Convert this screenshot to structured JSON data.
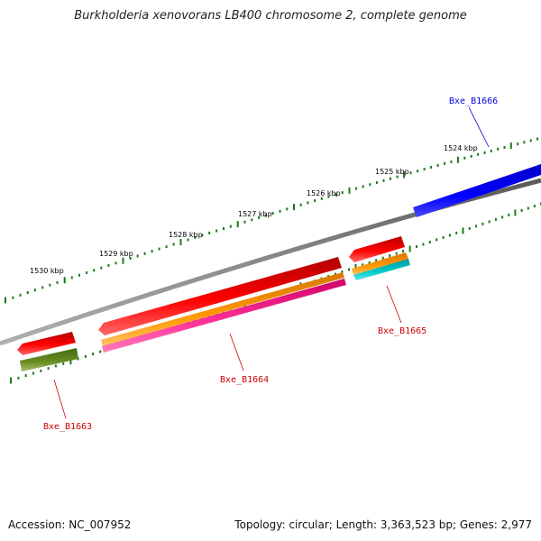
{
  "title": "Burkholderia xenovorans LB400 chromosome 2, complete genome",
  "footer": {
    "accession": "Accession: NC_007952",
    "summary": "Topology: circular; Length: 3,363,523 bp; Genes: 2,977"
  },
  "ticks": [
    "1524 kbp",
    "1525 kbp",
    "1526 kbp",
    "1527 kbp",
    "1528 kbp",
    "1529 kbp",
    "1530 kbp"
  ],
  "genes": [
    {
      "name": "Bxe_B1666",
      "color": "#0000dd"
    },
    {
      "name": "Bxe_B1665",
      "color": "#cc0000"
    },
    {
      "name": "Bxe_B1664",
      "color": "#cc0000"
    },
    {
      "name": "Bxe_B1663",
      "color": "#cc0000"
    }
  ],
  "colors": {
    "backbone": "#808080",
    "tick_marks": "#1a7a1a",
    "gene_forward": "#0000ff",
    "gene_reverse": "#ff0000",
    "cds_orange": "#ff9900",
    "cds_magenta": "#ff3399",
    "cds_cyan": "#00cccc",
    "cds_olive": "#6b8e23"
  }
}
